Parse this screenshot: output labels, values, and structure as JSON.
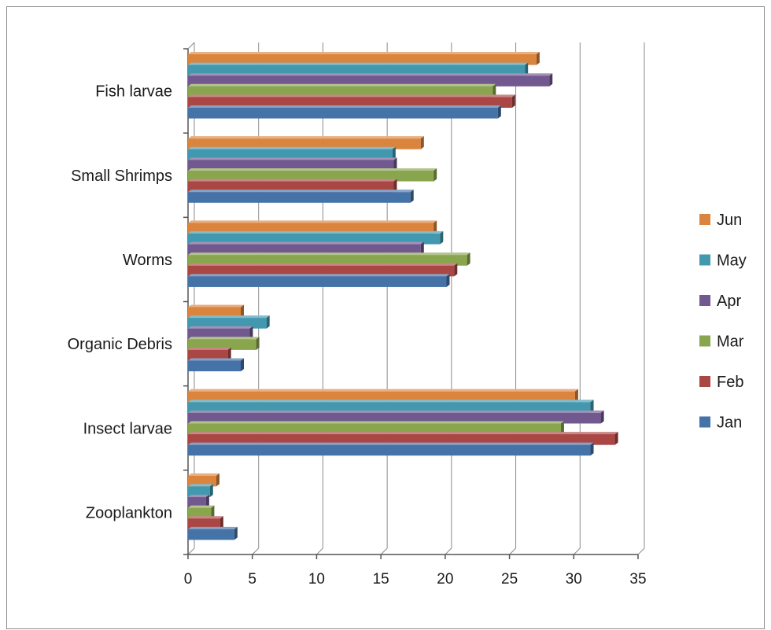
{
  "chart_data": {
    "type": "bar",
    "orientation": "horizontal",
    "style": "3d-clustered",
    "categories": [
      "Zooplankton",
      "Insect larvae",
      "Organic Debris",
      "Worms",
      "Small Shrimps",
      "Fish larvae"
    ],
    "series": [
      {
        "name": "Jan",
        "color": "#4572a7",
        "values": [
          3.6,
          31.3,
          4.1,
          20.1,
          17.3,
          24.1
        ]
      },
      {
        "name": "Feb",
        "color": "#aa4643",
        "values": [
          2.5,
          33.2,
          3.1,
          20.7,
          16.0,
          25.2
        ]
      },
      {
        "name": "Mar",
        "color": "#89a54e",
        "values": [
          1.8,
          29.0,
          5.3,
          21.7,
          19.1,
          23.7
        ]
      },
      {
        "name": "Apr",
        "color": "#71588f",
        "values": [
          1.4,
          32.1,
          4.8,
          18.1,
          16.0,
          28.1
        ]
      },
      {
        "name": "May",
        "color": "#4198af",
        "values": [
          1.7,
          31.3,
          6.1,
          19.6,
          15.9,
          26.2
        ]
      },
      {
        "name": "Jun",
        "color": "#db843d",
        "values": [
          2.2,
          30.1,
          4.1,
          19.1,
          18.1,
          27.1
        ]
      }
    ],
    "x_ticks": [
      "0",
      "5",
      "10",
      "15",
      "20",
      "25",
      "30",
      "35"
    ],
    "xlim": [
      0,
      35
    ],
    "title": "",
    "xlabel": "",
    "ylabel": "",
    "grid": "vertical",
    "legend_position": "right",
    "legend_order": [
      "Jun",
      "May",
      "Apr",
      "Mar",
      "Feb",
      "Jan"
    ]
  }
}
